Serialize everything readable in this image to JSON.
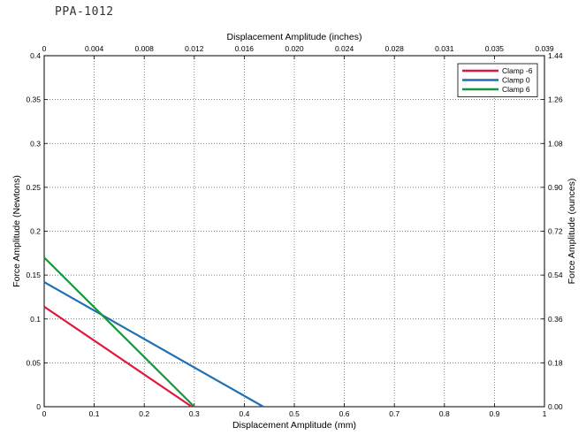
{
  "page_title": "PPA-1012",
  "chart_data": {
    "type": "line",
    "xlabel": "Displacement Amplitude (mm)",
    "ylabel": "Force Amplitude (Newtons)",
    "x2label": "Displacement Amplitude (inches)",
    "y2label": "Force Amplitude (ounces)",
    "xlim": [
      0,
      1
    ],
    "ylim": [
      0,
      0.4
    ],
    "x_ticks": [
      "0",
      "0.1",
      "0.2",
      "0.3",
      "0.4",
      "0.5",
      "0.6",
      "0.7",
      "0.8",
      "0.9",
      "1"
    ],
    "y_ticks": [
      "0",
      "0.05",
      "0.1",
      "0.15",
      "0.2",
      "0.25",
      "0.3",
      "0.35",
      "0.4"
    ],
    "x2_ticks": [
      "0",
      "0.004",
      "0.008",
      "0.012",
      "0.016",
      "0.020",
      "0.024",
      "0.028",
      "0.031",
      "0.035",
      "0.039"
    ],
    "y2_ticks": [
      "0.00",
      "0.18",
      "0.36",
      "0.54",
      "0.72",
      "0.90",
      "1.08",
      "1.26",
      "1.44"
    ],
    "grid": true,
    "legend_position": "top-right",
    "series": [
      {
        "name": "Clamp -6",
        "color": "#e0163c",
        "x": [
          0,
          0.295
        ],
        "y": [
          0.114,
          0
        ]
      },
      {
        "name": "Clamp 0",
        "color": "#1f6fb4",
        "x": [
          0,
          0.438
        ],
        "y": [
          0.142,
          0
        ]
      },
      {
        "name": "Clamp 6",
        "color": "#16963c",
        "x": [
          0,
          0.3
        ],
        "y": [
          0.17,
          0
        ]
      }
    ]
  }
}
